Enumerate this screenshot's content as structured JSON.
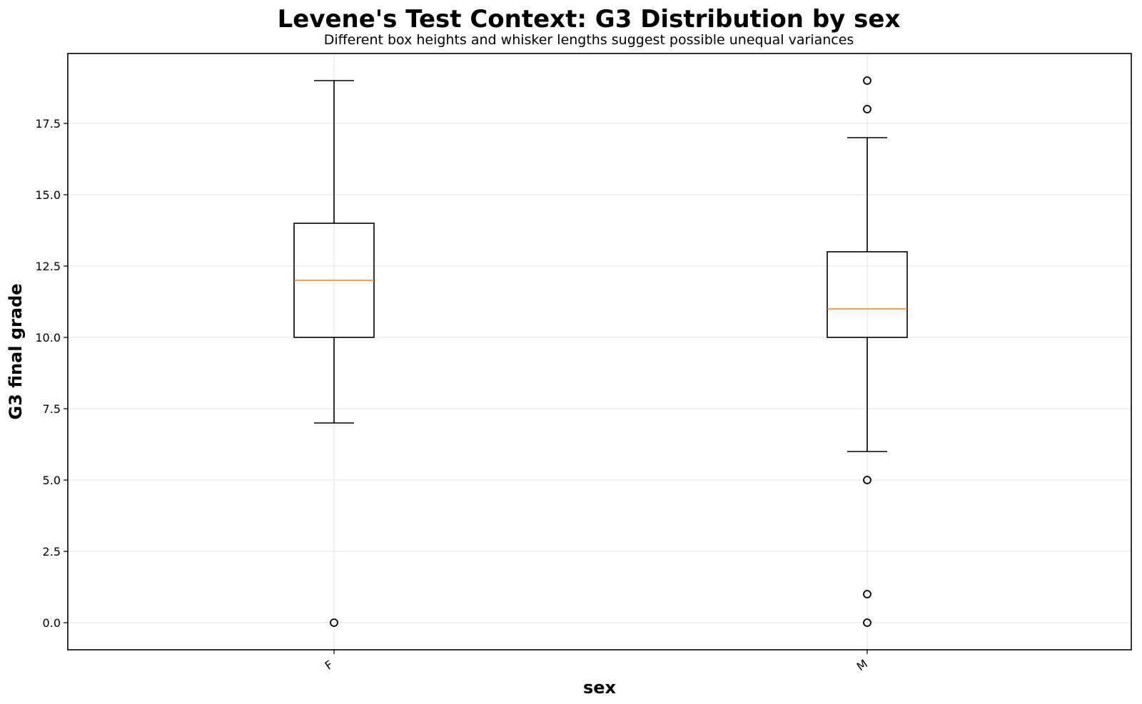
{
  "chart_data": {
    "type": "box",
    "title": "Levene's Test Context: G3 Distribution by sex",
    "subtitle": "Different box heights and whisker lengths suggest possible unequal variances",
    "xlabel": "sex",
    "ylabel": "G3 final grade",
    "categories": [
      "F",
      "M"
    ],
    "ylim": [
      -0.95,
      19.95
    ],
    "yticks": [
      "0.0",
      "2.5",
      "5.0",
      "7.5",
      "10.0",
      "12.5",
      "15.0",
      "17.5"
    ],
    "grid": true,
    "boxes": [
      {
        "category": "F",
        "whisker_low": 7,
        "q1": 10,
        "median": 12,
        "q3": 14,
        "whisker_high": 19,
        "outliers": [
          0
        ]
      },
      {
        "category": "M",
        "whisker_low": 6,
        "q1": 10,
        "median": 11,
        "q3": 13,
        "whisker_high": 17,
        "outliers": [
          0,
          1,
          5,
          18,
          19
        ]
      }
    ],
    "colors": {
      "box": "#000000",
      "median": "#ff7f0e",
      "grid": "#e6e6e6"
    }
  }
}
